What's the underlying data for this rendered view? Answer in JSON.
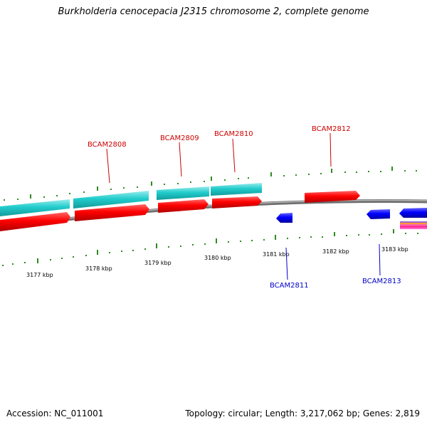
{
  "header": {
    "title": "Burkholderia cenocepacia J2315 chromosome 2, complete genome"
  },
  "footer": {
    "accession": "Accession: NC_011001",
    "summary": "Topology: circular; Length: 3,217,062 bp; Genes: 2,819"
  },
  "colors": {
    "forward_gene": "#ff0000",
    "reverse_gene": "#0000ff",
    "cds": "#22cccc",
    "tick": "#2e8b20",
    "backbone": "#888888",
    "forward_label": "#cc0000",
    "reverse_label": "#0000cc"
  },
  "scale_labels": [
    "3177 kbp",
    "3178 kbp",
    "3179 kbp",
    "3180 kbp",
    "3181 kbp",
    "3182 kbp",
    "3183 kbp"
  ],
  "gene_labels": {
    "forward": [
      "BCAM2808",
      "BCAM2809",
      "BCAM2810",
      "BCAM2812"
    ],
    "reverse": [
      "BCAM2811",
      "BCAM2813"
    ]
  }
}
